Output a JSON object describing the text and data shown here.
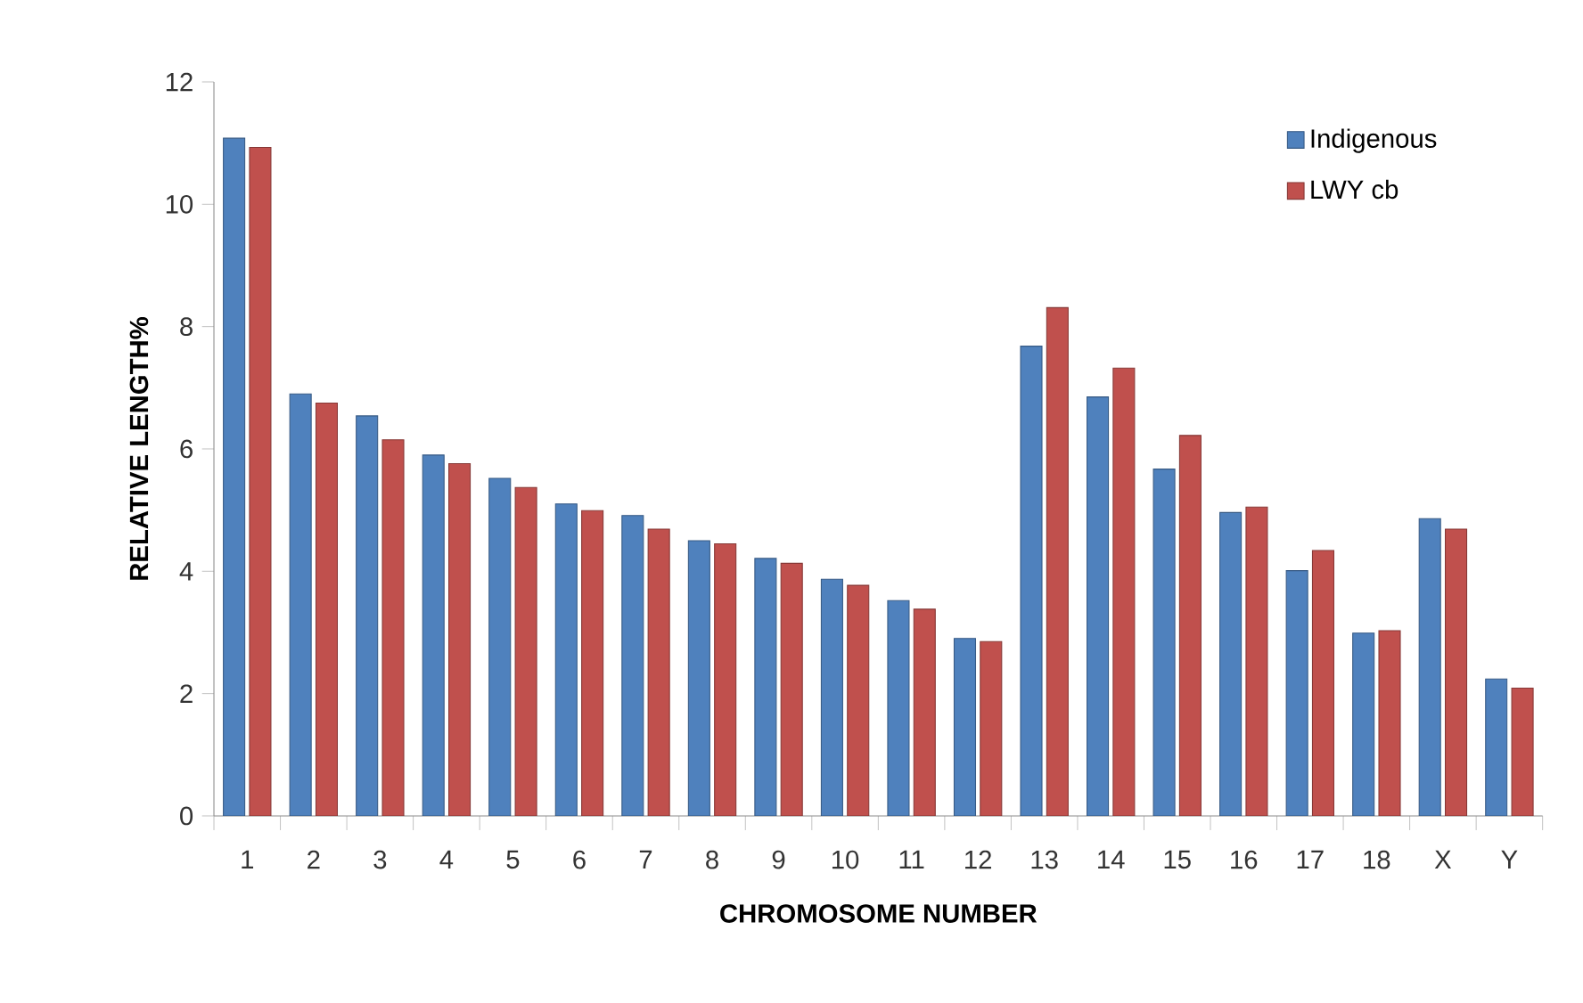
{
  "chart_data": {
    "type": "bar",
    "xlabel": "CHROMOSOME NUMBER",
    "ylabel": "RELATIVE LENGTH%",
    "categories": [
      "1",
      "2",
      "3",
      "4",
      "5",
      "6",
      "7",
      "8",
      "9",
      "10",
      "11",
      "12",
      "13",
      "14",
      "15",
      "16",
      "17",
      "18",
      "X",
      "Y"
    ],
    "series": [
      {
        "name": "Indigenous",
        "color": "#4f81bd",
        "values": [
          11.08,
          6.9,
          6.54,
          5.9,
          5.52,
          5.1,
          4.91,
          4.5,
          4.21,
          3.87,
          3.52,
          2.9,
          7.68,
          6.85,
          5.67,
          4.96,
          4.01,
          2.99,
          4.86,
          2.24
        ]
      },
      {
        "name": "LWY cb",
        "color": "#c0504d",
        "values": [
          10.93,
          6.75,
          6.15,
          5.76,
          5.37,
          4.99,
          4.69,
          4.45,
          4.13,
          3.77,
          3.38,
          2.85,
          8.31,
          7.32,
          6.22,
          5.05,
          4.34,
          3.03,
          4.69,
          2.09
        ]
      }
    ],
    "ylim": [
      0,
      12
    ],
    "yticks": [
      0,
      2,
      4,
      6,
      8,
      10,
      12
    ],
    "grid": false,
    "legend": "top right"
  }
}
